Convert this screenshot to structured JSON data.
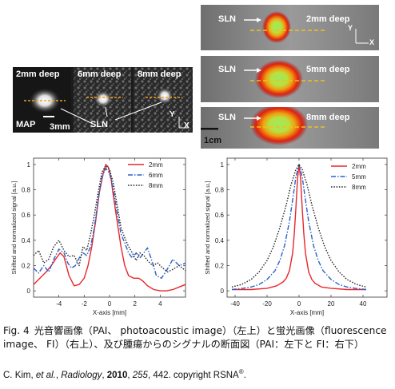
{
  "pai_panels": [
    {
      "label": "2mm deep"
    },
    {
      "label": "6mm deep"
    },
    {
      "label": "8mm deep"
    }
  ],
  "pai_annotations": {
    "map": "MAP",
    "scale": "3mm",
    "sln": "SLN",
    "axis_y": "Y",
    "axis_x": "X"
  },
  "fi_panels": [
    {
      "sln": "SLN",
      "label": "2mm deep"
    },
    {
      "sln": "SLN",
      "label": "5mm deep"
    },
    {
      "sln": "SLN",
      "label": "8mm deep"
    }
  ],
  "fi_annotations": {
    "axis_y": "Y",
    "axis_x": "X",
    "scale": "1cm"
  },
  "chart_data": [
    {
      "type": "line",
      "xlabel": "X-axis [mm]",
      "ylabel": "Shifted and normalized signal [a.u.]",
      "xlim": [
        -6,
        6
      ],
      "ylim": [
        -0.05,
        1.05
      ],
      "xticks": [
        -4,
        -2,
        0,
        2,
        4
      ],
      "xtick_labels": [
        "-4",
        "-2",
        "0",
        "2",
        "4"
      ],
      "yticks": [
        0,
        0.2,
        0.4,
        0.6,
        0.8,
        1
      ],
      "ytick_labels": [
        "0",
        "0.2",
        "0.4",
        "0.6",
        "0.8",
        "1"
      ],
      "legend_position": "top-right",
      "series": [
        {
          "name": "2mm",
          "color": "#e8262a",
          "dash": "solid",
          "x": [
            -6,
            -5.5,
            -5,
            -4.6,
            -4.2,
            -3.9,
            -3.6,
            -3.2,
            -2.8,
            -2.4,
            -2,
            -1.7,
            -1.4,
            -1.1,
            -0.8,
            -0.5,
            -0.3,
            -0.1,
            0.1,
            0.3,
            0.6,
            0.9,
            1.2,
            1.5,
            1.9,
            2.3,
            2.6,
            3,
            3.5,
            4,
            4.5,
            5,
            5.5,
            6
          ],
          "y": [
            0.05,
            0.1,
            0.15,
            0.2,
            0.26,
            0.3,
            0.27,
            0.12,
            0.04,
            0.05,
            0.1,
            0.2,
            0.35,
            0.55,
            0.78,
            0.93,
            1,
            0.98,
            0.9,
            0.75,
            0.55,
            0.35,
            0.2,
            0.12,
            0.1,
            0.1,
            0.08,
            0.04,
            0.01,
            0,
            0,
            0.01,
            0.03,
            0.05
          ]
        },
        {
          "name": "6mm",
          "color": "#2a62c6",
          "dash": "dashdot",
          "x": [
            -6,
            -5.6,
            -5.2,
            -4.8,
            -4.4,
            -4,
            -3.6,
            -3.3,
            -3,
            -2.7,
            -2.4,
            -2.1,
            -1.8,
            -1.5,
            -1.2,
            -0.9,
            -0.6,
            -0.3,
            0,
            0.3,
            0.6,
            0.9,
            1.2,
            1.5,
            1.8,
            2.1,
            2.4,
            2.7,
            3,
            3.3,
            3.7,
            4.1,
            4.5,
            5,
            5.5,
            6
          ],
          "y": [
            0.18,
            0.14,
            0.2,
            0.15,
            0.25,
            0.33,
            0.3,
            0.22,
            0.18,
            0.2,
            0.26,
            0.3,
            0.28,
            0.35,
            0.5,
            0.72,
            0.9,
            0.97,
            0.93,
            0.8,
            0.62,
            0.45,
            0.38,
            0.3,
            0.26,
            0.3,
            0.26,
            0.3,
            0.34,
            0.25,
            0.12,
            0.1,
            0.16,
            0.25,
            0.2,
            0.22
          ]
        },
        {
          "name": "8mm",
          "color": "#222222",
          "dash": "dotted",
          "x": [
            -6,
            -5.6,
            -5.2,
            -4.8,
            -4.4,
            -4,
            -3.6,
            -3.2,
            -2.8,
            -2.4,
            -2.1,
            -1.8,
            -1.5,
            -1.2,
            -0.9,
            -0.6,
            -0.3,
            0,
            0.3,
            0.6,
            0.9,
            1.2,
            1.5,
            1.8,
            2.1,
            2.4,
            2.7,
            3,
            3.4,
            3.8,
            4.2,
            4.6,
            5,
            5.5,
            6
          ],
          "y": [
            0.28,
            0.32,
            0.22,
            0.25,
            0.35,
            0.4,
            0.32,
            0.27,
            0.28,
            0.2,
            0.35,
            0.32,
            0.45,
            0.6,
            0.78,
            0.94,
            0.99,
            0.96,
            0.85,
            0.68,
            0.5,
            0.42,
            0.35,
            0.3,
            0.24,
            0.3,
            0.28,
            0.24,
            0.2,
            0.22,
            0.18,
            0.15,
            0.17,
            0.2,
            0.16
          ]
        }
      ]
    },
    {
      "type": "line",
      "xlabel": "X-axis [mm]",
      "ylabel": "Shifted and normalized signal [a.u.]",
      "xlim": [
        -45,
        55
      ],
      "ylim": [
        -0.05,
        1.05
      ],
      "xticks": [
        -40,
        -20,
        0,
        20,
        40
      ],
      "xtick_labels": [
        "-40",
        "-20",
        "0",
        "20",
        "40"
      ],
      "yticks": [
        0,
        0.2,
        0.4,
        0.6,
        0.8,
        1
      ],
      "ytick_labels": [
        "0",
        "0.2",
        "0.4",
        "0.6",
        "0.8",
        "1"
      ],
      "legend_position": "top-right",
      "series": [
        {
          "name": "2mm",
          "color": "#e8262a",
          "dash": "solid",
          "x": [
            -42,
            -30,
            -20,
            -14,
            -10,
            -8,
            -6,
            -4,
            -3,
            -2,
            -1,
            0,
            1,
            2,
            3,
            4,
            6,
            8,
            10,
            14,
            20,
            30,
            42
          ],
          "y": [
            0.01,
            0.01,
            0.02,
            0.04,
            0.07,
            0.1,
            0.16,
            0.3,
            0.45,
            0.65,
            0.88,
            1,
            0.88,
            0.65,
            0.45,
            0.3,
            0.15,
            0.09,
            0.06,
            0.03,
            0.02,
            0.01,
            0.01
          ]
        },
        {
          "name": "5mm",
          "color": "#2a62c6",
          "dash": "dashdot",
          "x": [
            -42,
            -35,
            -30,
            -25,
            -20,
            -15,
            -12,
            -9,
            -6,
            -4,
            -2,
            0,
            2,
            4,
            6,
            9,
            12,
            15,
            20,
            25,
            30,
            35,
            42
          ],
          "y": [
            0.01,
            0.02,
            0.03,
            0.05,
            0.09,
            0.16,
            0.24,
            0.36,
            0.55,
            0.72,
            0.9,
            1,
            0.9,
            0.72,
            0.55,
            0.36,
            0.24,
            0.16,
            0.09,
            0.05,
            0.03,
            0.02,
            0.01
          ]
        },
        {
          "name": "8mm",
          "color": "#222222",
          "dash": "dotted",
          "x": [
            -42,
            -36,
            -30,
            -25,
            -20,
            -16,
            -12,
            -8,
            -5,
            -2,
            0,
            2,
            5,
            8,
            12,
            16,
            20,
            25,
            30,
            36,
            42
          ],
          "y": [
            0.03,
            0.05,
            0.09,
            0.15,
            0.24,
            0.35,
            0.5,
            0.68,
            0.84,
            0.96,
            1,
            0.96,
            0.84,
            0.68,
            0.5,
            0.35,
            0.24,
            0.15,
            0.09,
            0.05,
            0.03
          ]
        }
      ]
    }
  ],
  "caption": {
    "fig_label": "Fig. 4",
    "text": "光音響画像（PAI、 photoacoustic image）（左上）と蛍光画像（fluorescence image、 FI）（右上）、及び腫瘍からのシグナルの断面図（PAI：左下と FI：右下）"
  },
  "credit": {
    "prefix": "C. Kim, ",
    "et_al": "et al.",
    "journal_sep": ", ",
    "journal": "Radiology",
    "year_sep": ", ",
    "year": "2010",
    "vol_sep": ", ",
    "volume": "255",
    "rest": ", 442. copyright RSNA",
    "reg": "®",
    "end": "."
  }
}
